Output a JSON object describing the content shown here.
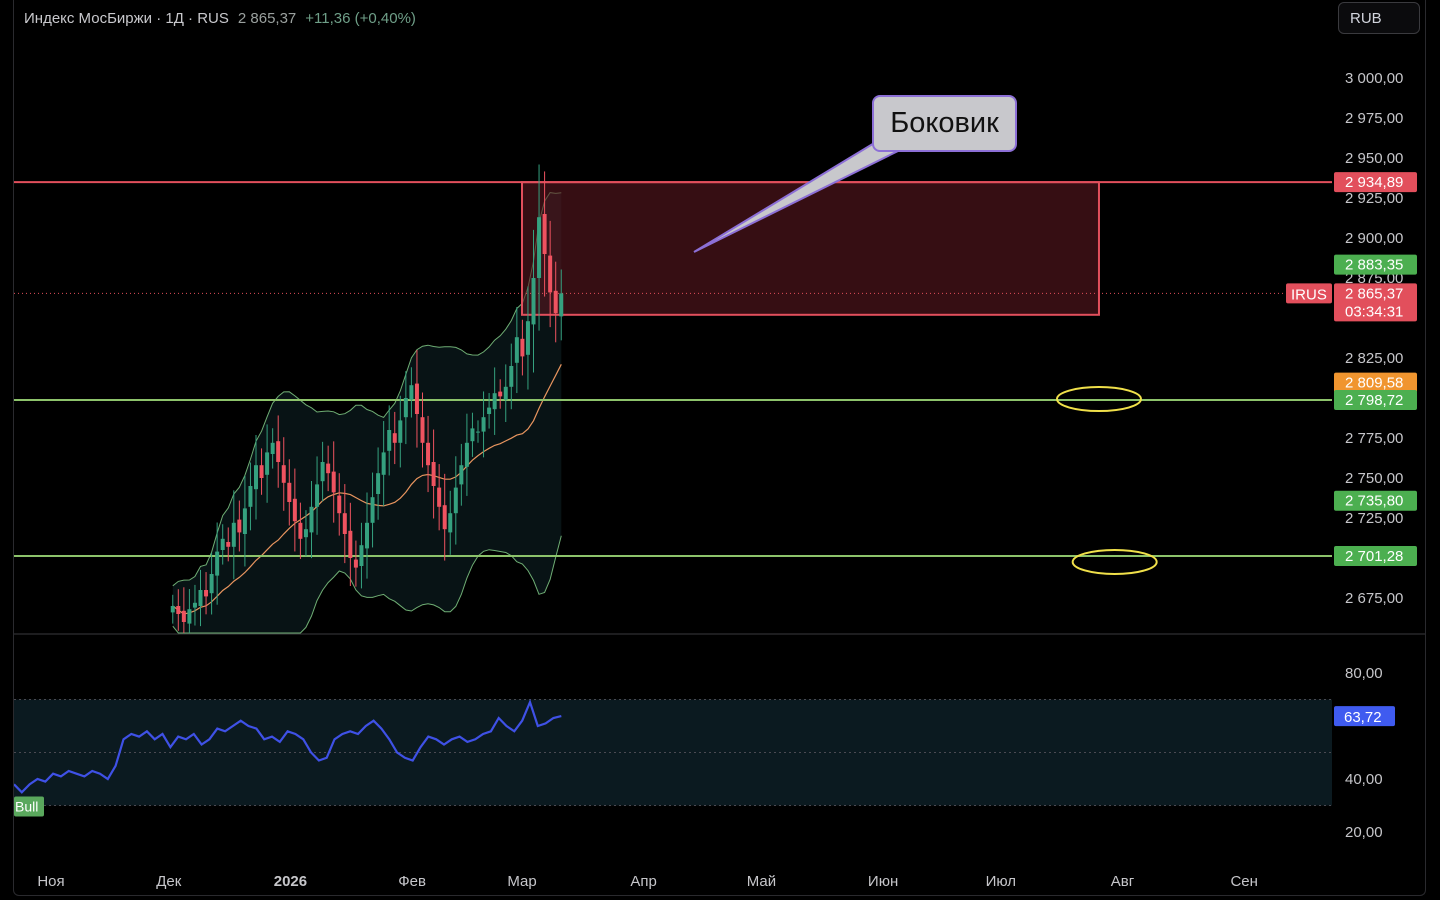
{
  "header": {
    "title": "Индекс МосБиржи · 1Д · RUS",
    "price": "2 865,37",
    "change": "+11,36 (+0,40%)"
  },
  "currency_button": "RUB",
  "annotation": {
    "label": "Боковик"
  },
  "colors": {
    "up": "#35a17f",
    "down": "#ef5360",
    "resistance": "#e24f5c",
    "support": "#8dc36b",
    "rsi": "#3f51e6",
    "bollinger": "#6fae74",
    "ma": "#e8955f",
    "highlight": "#f0e04a"
  },
  "chart_data": [
    {
      "type": "candlestick",
      "title": "Индекс МосБиржи · 1Д · RUS",
      "ylim": [
        2660,
        3030
      ],
      "y_ticks": [
        "3 000,00",
        "2 975,00",
        "2 950,00",
        "2 925,00",
        "2 900,00",
        "2 875,00",
        "2 825,00",
        "2 775,00",
        "2 750,00",
        "2 725,00",
        "2 675,00"
      ],
      "y_tick_values": [
        3000,
        2975,
        2950,
        2925,
        2900,
        2875,
        2825,
        2775,
        2750,
        2725,
        2675
      ],
      "x_ticks": [
        "Ноя",
        "Дек",
        "2026",
        "Фев",
        "Мар",
        "Апр",
        "Май",
        "Июн",
        "Июл",
        "Авг",
        "Сен"
      ],
      "x_tick_dates": [
        "2025-11-01",
        "2025-12-01",
        "2026-01-01",
        "2026-02-01",
        "2026-03-01",
        "2026-04-01",
        "2026-05-01",
        "2026-06-01",
        "2026-07-01",
        "2026-08-01",
        "2026-09-01"
      ],
      "last_date": "2026-03-11",
      "last_close": 2865.37,
      "close_series": [
        2670,
        2665,
        2660,
        2668,
        2672,
        2680,
        2676,
        2690,
        2704,
        2712,
        2707,
        2722,
        2716,
        2731,
        2745,
        2758,
        2750,
        2766,
        2772,
        2760,
        2747,
        2735,
        2723,
        2712,
        2718,
        2732,
        2746,
        2760,
        2753,
        2741,
        2728,
        2715,
        2700,
        2694,
        2708,
        2722,
        2738,
        2753,
        2766,
        2780,
        2772,
        2786,
        2800,
        2808,
        2790,
        2772,
        2758,
        2745,
        2732,
        2718,
        2728,
        2744,
        2758,
        2772,
        2781,
        2779,
        2788,
        2794,
        2803,
        2801,
        2807,
        2820,
        2838,
        2826,
        2848,
        2875,
        2913,
        2890,
        2866,
        2853,
        2865.37
      ],
      "horizontal_levels": [
        {
          "label": "2 934,89",
          "value": 2934.89,
          "color": "resistance"
        },
        {
          "label": "2 798,72",
          "value": 2798.72,
          "color": "support"
        },
        {
          "label": "2 701,28",
          "value": 2701.28,
          "color": "support"
        }
      ],
      "price_badges": [
        {
          "label": "2 934,89",
          "value": 2934.89,
          "color": "#e24f5c"
        },
        {
          "label": "2 883,35",
          "value": 2883.35,
          "color": "#4caf50"
        },
        {
          "label": "2 865,37",
          "sublabel": "03:34:31",
          "value": 2865.37,
          "color": "#e24f5c"
        },
        {
          "label": "2 809,58",
          "value": 2809.58,
          "color": "#f0952f"
        },
        {
          "label": "2 798,72",
          "value": 2798.72,
          "color": "#4caf50"
        },
        {
          "label": "2 735,80",
          "value": 2735.8,
          "color": "#4caf50"
        },
        {
          "label": "2 701,28",
          "value": 2701.28,
          "color": "#4caf50"
        }
      ],
      "symbol_tag": "IRUS",
      "range_box": {
        "from": "2026-03-01",
        "to": "2026-07-26",
        "high": 2934.89,
        "low": 2852
      },
      "highlighted_levels": [
        {
          "level": 2798.72,
          "date": "2026-07-26"
        },
        {
          "level": 2701.28,
          "date": "2026-07-30"
        }
      ]
    },
    {
      "type": "line",
      "title": "",
      "ylim": [
        15,
        90
      ],
      "y_ticks": [
        "80,00",
        "40,00",
        "20,00"
      ],
      "y_tick_values": [
        80,
        40,
        20
      ],
      "band": [
        30,
        70
      ],
      "last_value_label": "63,72",
      "last_value": 63.72,
      "signal_label": "Bull",
      "values": [
        38,
        35,
        38,
        40,
        39,
        42,
        41,
        43,
        42,
        41,
        43,
        42,
        40,
        45,
        55,
        57,
        56,
        58,
        55,
        57,
        52,
        56,
        55,
        57,
        53,
        55,
        59,
        58,
        60,
        62,
        60,
        59,
        55,
        56,
        54,
        58,
        57,
        55,
        50,
        47,
        48,
        55,
        57,
        58,
        57,
        60,
        62,
        59,
        55,
        50,
        48,
        47,
        52,
        56,
        55,
        53,
        55,
        56,
        54,
        55,
        57,
        58,
        63,
        60,
        58,
        62,
        69,
        60,
        61,
        63,
        63.72
      ]
    }
  ]
}
